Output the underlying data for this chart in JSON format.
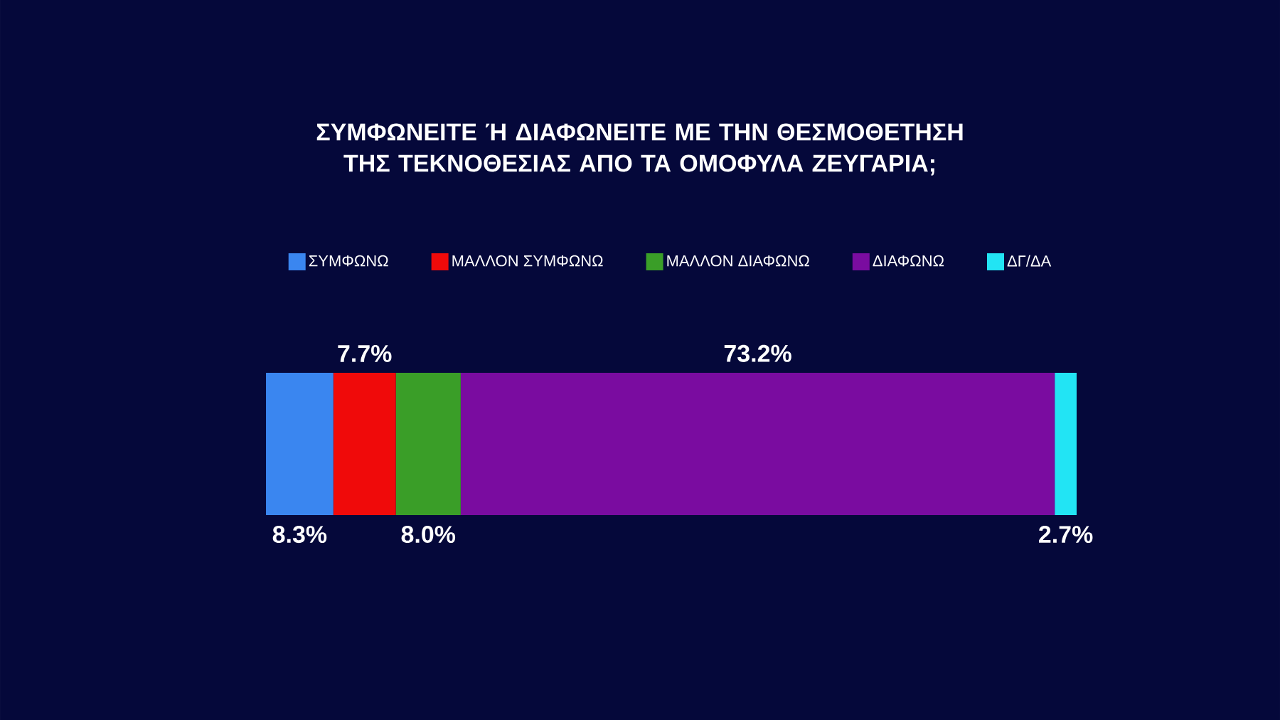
{
  "chart_data": {
    "type": "bar",
    "orientation": "horizontal",
    "stacked": true,
    "title": "ΣΥΜΦΩΝΕΙΤΕ Ή ΔΙΑΦΩΝΕΙΤΕ ΜΕ ΤΗΝ ΘΕΣΜΟΘΕΤΗΣΗ ΤΗΣ ΤΕΚΝΟΘΕΣΙΑΣ ΑΠΟ ΤΑ ΟΜΟΦΥΛΑ ΖΕΥΓΑΡΙΑ;",
    "categories": [
      null
    ],
    "legend": "top",
    "series": [
      {
        "name": "ΣΥΜΦΩΝΩ",
        "color": "#3a86f0",
        "values": [
          8.3
        ],
        "value_labels": [
          "8.3%"
        ]
      },
      {
        "name": "ΜΑΛΛΟΝ ΣΥΜΦΩΝΩ",
        "color": "#f00a0a",
        "values": [
          7.7
        ],
        "value_labels": [
          "7.7%"
        ]
      },
      {
        "name": "ΜΑΛΛΟΝ ΔΙΑΦΩΝΩ",
        "color": "#3a9e28",
        "values": [
          8.0
        ],
        "value_labels": [
          "8.0%"
        ]
      },
      {
        "name": "ΔΙΑΦΩΝΩ",
        "color": "#7a0ca0",
        "values": [
          73.2
        ],
        "value_labels": [
          "73.2%"
        ]
      },
      {
        "name": "ΔΓ/ΔΑ",
        "color": "#22e4f4",
        "values": [
          2.7
        ],
        "value_labels": [
          "2.7%"
        ]
      }
    ]
  }
}
